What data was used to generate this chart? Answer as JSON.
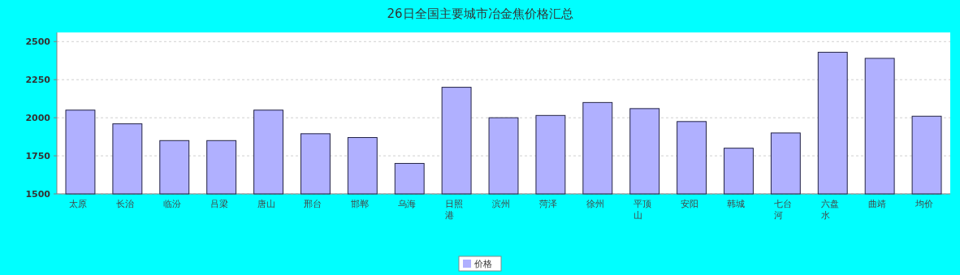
{
  "chart_data": {
    "type": "bar",
    "title": "26日全国主要城市冶金焦价格汇总",
    "categories": [
      "太原",
      "长治",
      "临汾",
      "吕梁",
      "唐山",
      "邢台",
      "邯郸",
      "乌海",
      "日照港",
      "滨州",
      "菏泽",
      "徐州",
      "平顶山",
      "安阳",
      "韩城",
      "七台河",
      "六盘水",
      "曲靖",
      "均价"
    ],
    "series": [
      {
        "name": "价格",
        "color": "#b0b0ff",
        "values": [
          2050,
          1960,
          1850,
          1850,
          2050,
          1895,
          1870,
          1700,
          2200,
          2000,
          2015,
          2100,
          2060,
          1975,
          1800,
          1900,
          2430,
          2390,
          2010
        ]
      }
    ],
    "ylim": [
      1500,
      2560
    ],
    "yticks": [
      1500,
      1750,
      2000,
      2250,
      2500
    ],
    "grid": "y",
    "legend": "bottom"
  }
}
